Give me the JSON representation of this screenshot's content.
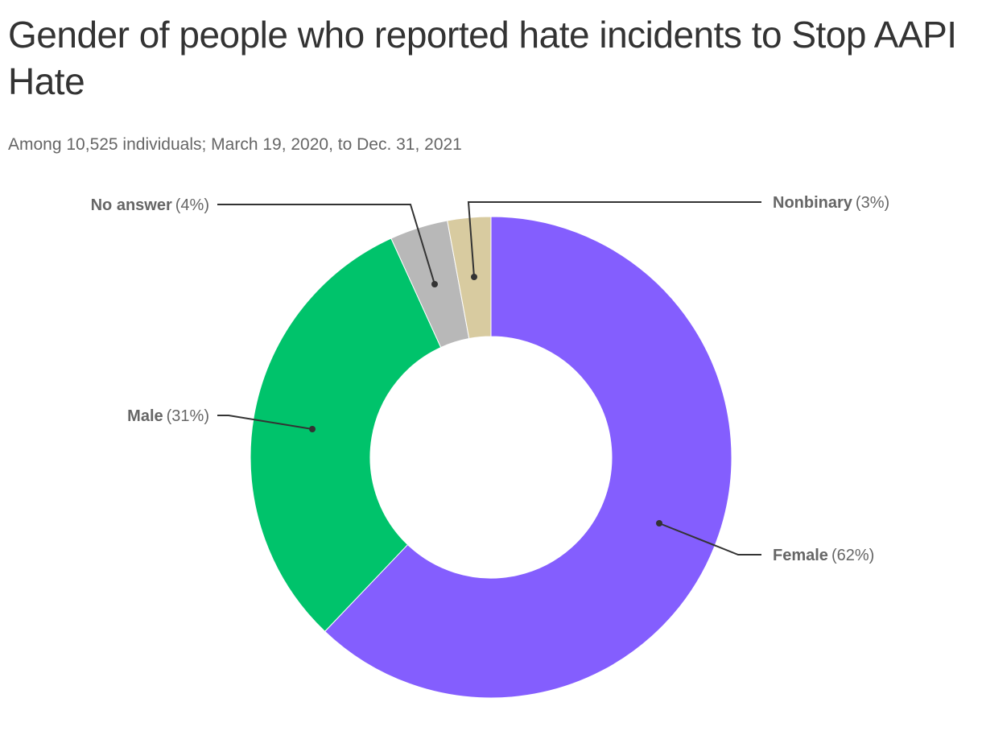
{
  "header": {
    "title": "Gender of people who reported hate incidents to Stop AAPI Hate",
    "subtitle": "Among 10,525 individuals; March 19, 2020, to Dec. 31, 2021"
  },
  "chart_data": {
    "type": "pie",
    "variant": "donut",
    "title": "Gender of people who reported hate incidents to Stop AAPI Hate",
    "subtitle": "Among 10,525 individuals; March 19, 2020, to Dec. 31, 2021",
    "categories": [
      "Female",
      "Male",
      "No answer",
      "Nonbinary"
    ],
    "values": [
      62,
      31,
      4,
      3
    ],
    "labels": [
      "Female (62%)",
      "Male (31%)",
      "No answer (4%)",
      "Nonbinary (3%)"
    ],
    "colors": [
      "#845efe",
      "#00c36b",
      "#b8b8b8",
      "#d8cba0"
    ],
    "start_angle": "12 o'clock, clockwise",
    "legend": "none (callout labels with leader lines)",
    "grid": false
  },
  "slices": [
    {
      "name": "Female",
      "pct": "(62%)",
      "value": 62,
      "color": "#845efe"
    },
    {
      "name": "Male",
      "pct": "(31%)",
      "value": 31,
      "color": "#00c36b"
    },
    {
      "name": "No answer",
      "pct": "(4%)",
      "value": 3.9,
      "color": "#b8b8b8"
    },
    {
      "name": "Nonbinary",
      "pct": "(3%)",
      "value": 2.9,
      "color": "#d8cba0"
    }
  ]
}
